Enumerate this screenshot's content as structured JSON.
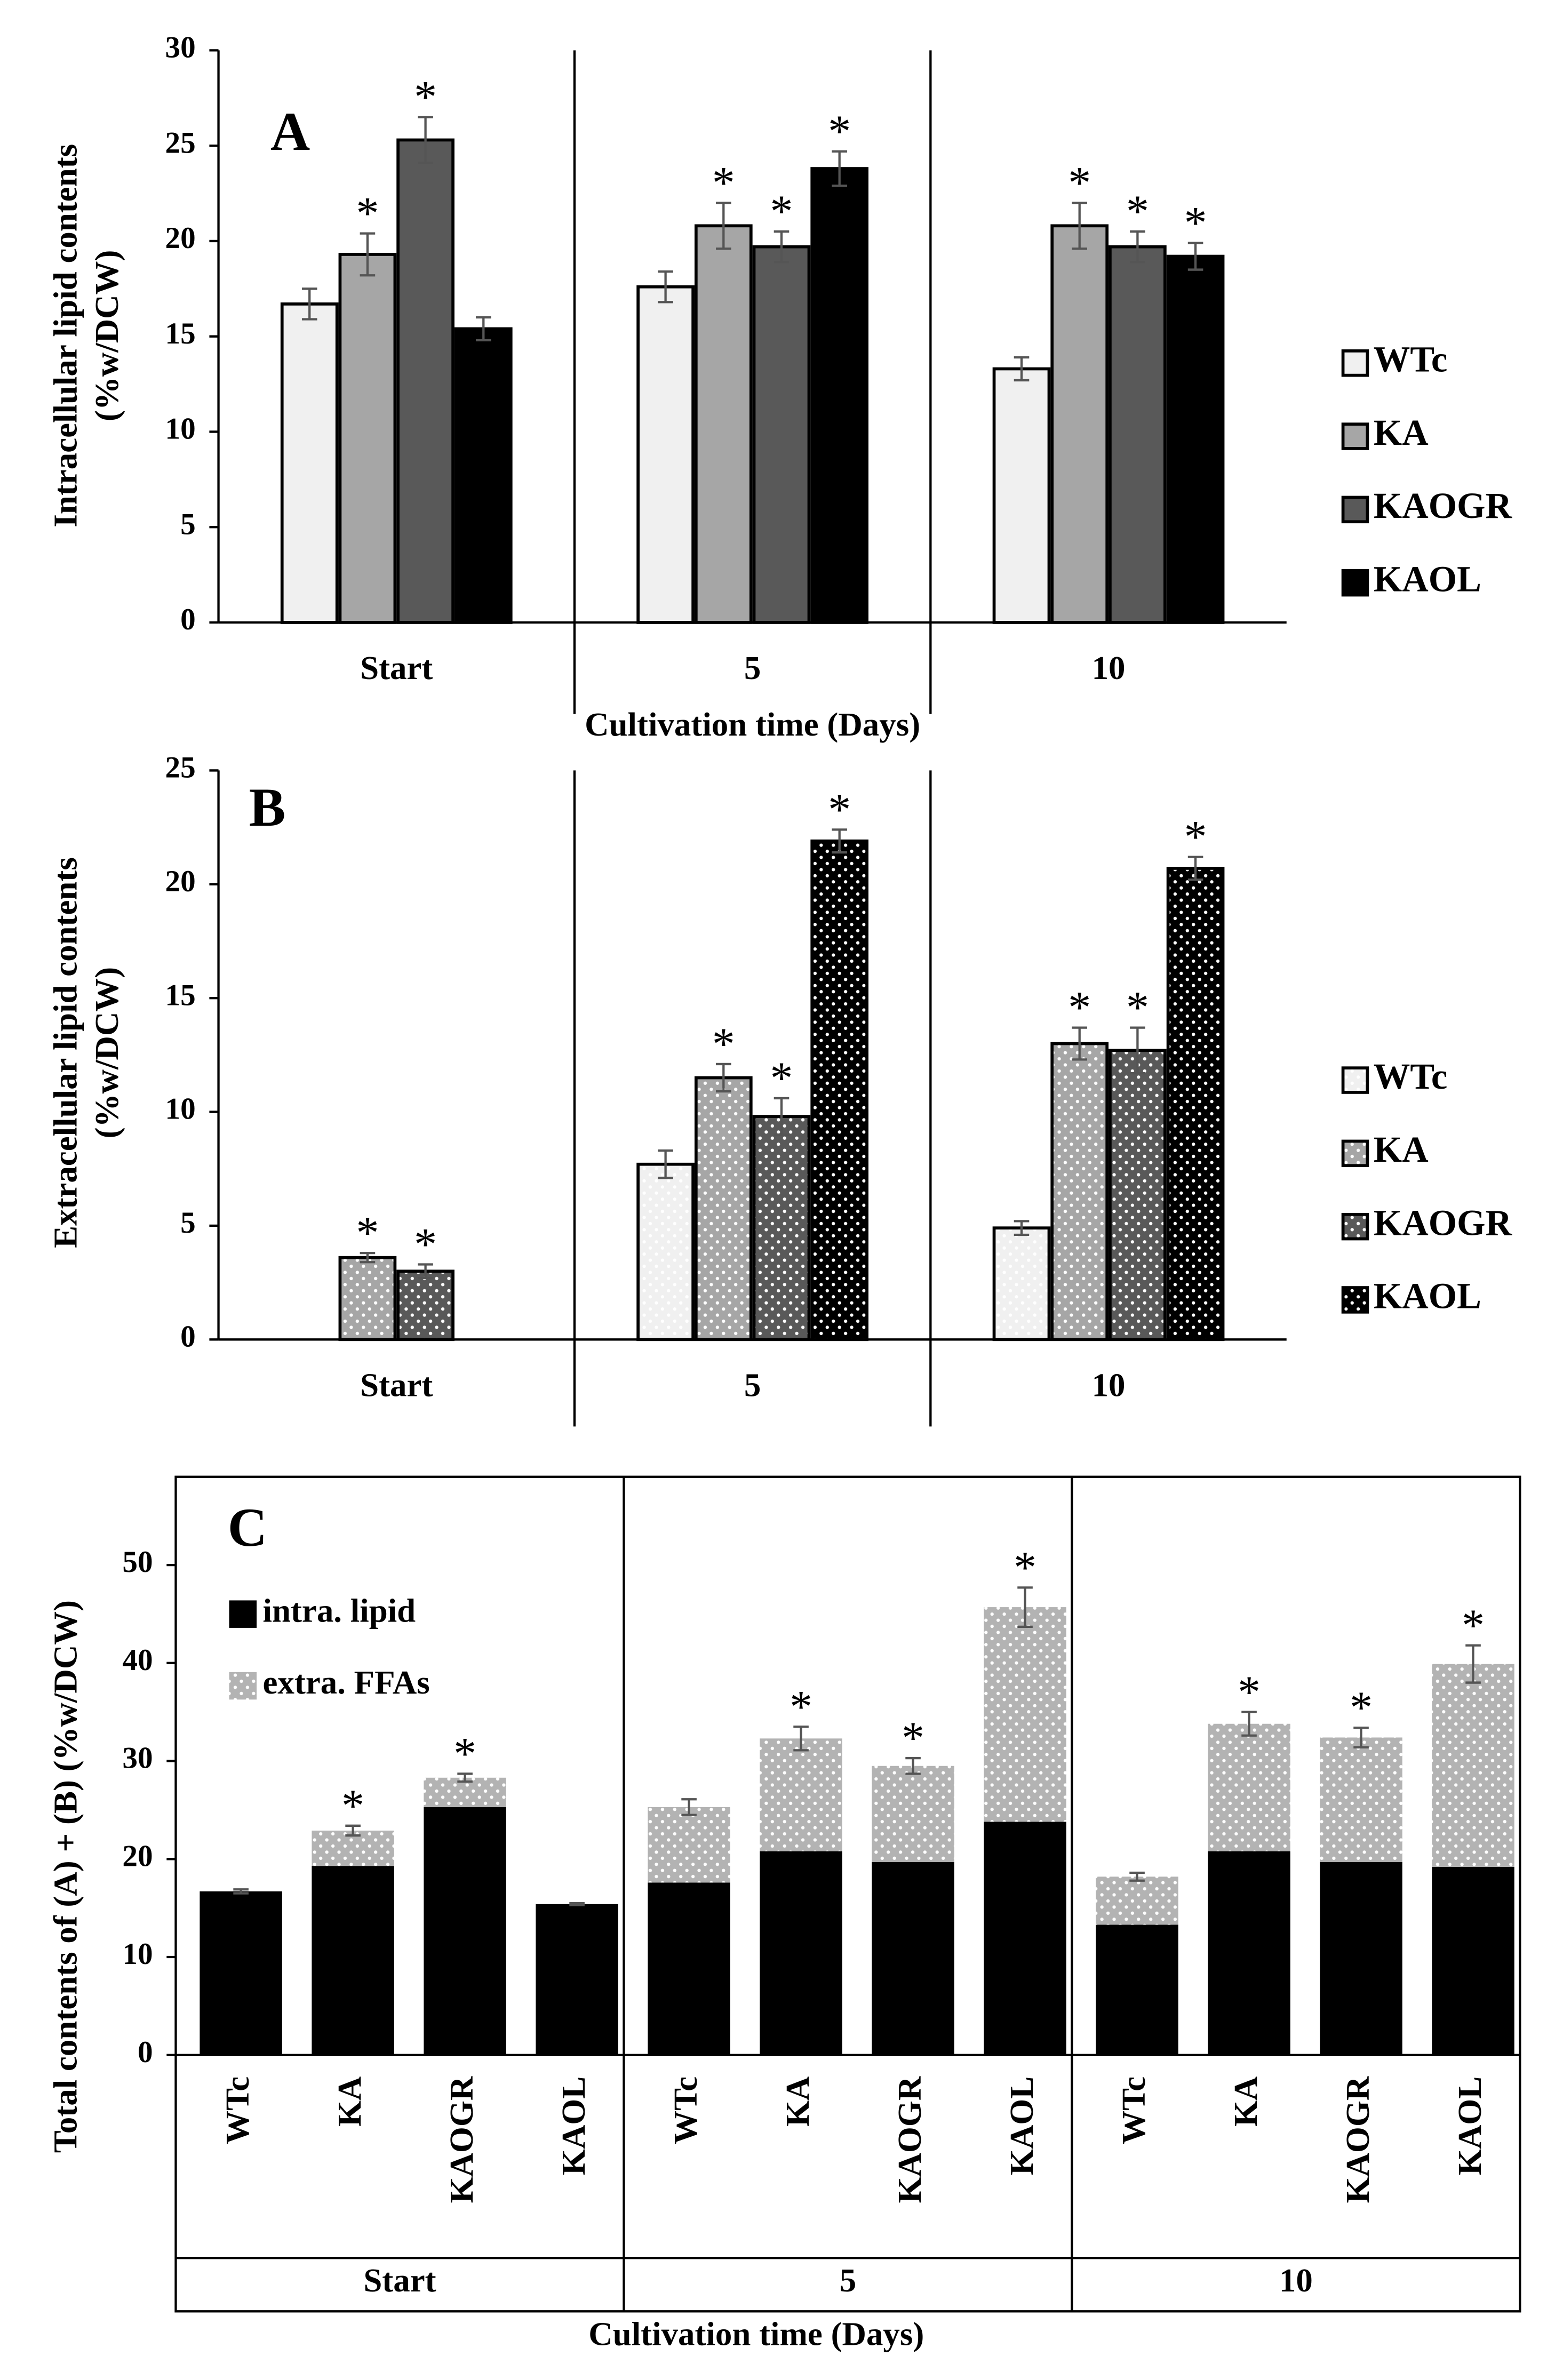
{
  "chart_data": [
    {
      "type": "bar",
      "title": "A",
      "categories": [
        "Start",
        "5",
        "10"
      ],
      "xlabel": "Cultivation time (Days)",
      "ylabel": [
        "Intracellular lipid contents",
        "(%w/DCW)"
      ],
      "ylim": [
        0,
        30
      ],
      "yticks": [
        0,
        5,
        10,
        15,
        20,
        25,
        30
      ],
      "series": [
        {
          "name": "WTc",
          "color": "#f0f0f0",
          "values": [
            16.7,
            17.6,
            13.3
          ],
          "errors": [
            0.8,
            0.8,
            0.6
          ],
          "labels": [
            null,
            null,
            null
          ]
        },
        {
          "name": "KA",
          "color": "#a6a6a6",
          "values": [
            19.3,
            20.8,
            20.8
          ],
          "errors": [
            1.1,
            1.2,
            1.2
          ],
          "labels": [
            "*",
            "*",
            "*"
          ]
        },
        {
          "name": "KAOGR",
          "color": "#595959",
          "values": [
            25.3,
            19.7,
            19.7
          ],
          "errors": [
            1.2,
            0.8,
            0.8
          ],
          "labels": [
            "*",
            "*",
            "*"
          ]
        },
        {
          "name": "KAOL",
          "color": "#000000",
          "values": [
            15.4,
            23.8,
            19.2
          ],
          "errors": [
            0.6,
            0.9,
            0.7
          ],
          "labels": [
            null,
            "*",
            "*"
          ]
        }
      ]
    },
    {
      "type": "bar",
      "title": "B",
      "categories": [
        "Start",
        "5",
        "10"
      ],
      "ylabel": [
        "Extracellular lipid contents",
        "(%w/DCW)"
      ],
      "ylim": [
        0,
        25
      ],
      "yticks": [
        0,
        5,
        10,
        15,
        20,
        25
      ],
      "series": [
        {
          "name": "WTc",
          "color": "#f0f0f0",
          "pattern": "dots",
          "values": [
            0,
            7.7,
            4.9
          ],
          "errors": [
            null,
            0.6,
            0.3
          ],
          "labels": [
            null,
            null,
            null
          ]
        },
        {
          "name": "KA",
          "color": "#a6a6a6",
          "pattern": "dots",
          "values": [
            3.6,
            11.5,
            13.0
          ],
          "errors": [
            0.2,
            0.6,
            0.7
          ],
          "labels": [
            "*",
            "*",
            "*"
          ]
        },
        {
          "name": "KAOGR",
          "color": "#595959",
          "pattern": "dots",
          "values": [
            3.0,
            9.8,
            12.7
          ],
          "errors": [
            0.3,
            0.8,
            1.0
          ],
          "labels": [
            "*",
            "*",
            "*"
          ]
        },
        {
          "name": "KAOL",
          "color": "#000000",
          "pattern": "dots",
          "values": [
            0,
            21.9,
            20.7
          ],
          "errors": [
            null,
            0.5,
            0.5
          ],
          "labels": [
            null,
            "*",
            "*"
          ]
        }
      ]
    },
    {
      "type": "stacked_bar",
      "title": "C",
      "categories": [
        "WTc",
        "KA",
        "KAOGR",
        "KAOL",
        "WTc",
        "KA",
        "KAOGR",
        "KAOL",
        "WTc",
        "KA",
        "KAOGR",
        "KAOL"
      ],
      "groups": [
        "Start",
        "5",
        "10"
      ],
      "xlabel": "Cultivation time (Days)",
      "ylabel": [
        "Total contents of (A) + (B) (%w/DCW)"
      ],
      "ylim": [
        0,
        59
      ],
      "yticks": [
        0,
        10,
        20,
        30,
        40,
        50
      ],
      "series": [
        {
          "name": "intra. lipid",
          "color": "#000000",
          "values": [
            16.7,
            19.3,
            25.3,
            15.4,
            17.6,
            20.8,
            19.7,
            23.8,
            13.3,
            20.8,
            19.7,
            19.2
          ]
        },
        {
          "name": "extra. FFAs",
          "color": "#b3b3b3",
          "pattern": "dots",
          "values": [
            0,
            3.6,
            3.0,
            0,
            7.7,
            11.5,
            9.8,
            21.9,
            4.9,
            13.0,
            12.7,
            20.7
          ],
          "errors": [
            0.2,
            0.5,
            0.4,
            0.1,
            0.8,
            1.2,
            0.8,
            2.0,
            0.4,
            1.2,
            1.0,
            1.9
          ],
          "labels": [
            null,
            "*",
            "*",
            null,
            null,
            "*",
            "*",
            "*",
            null,
            "*",
            "*",
            "*"
          ]
        }
      ]
    }
  ]
}
